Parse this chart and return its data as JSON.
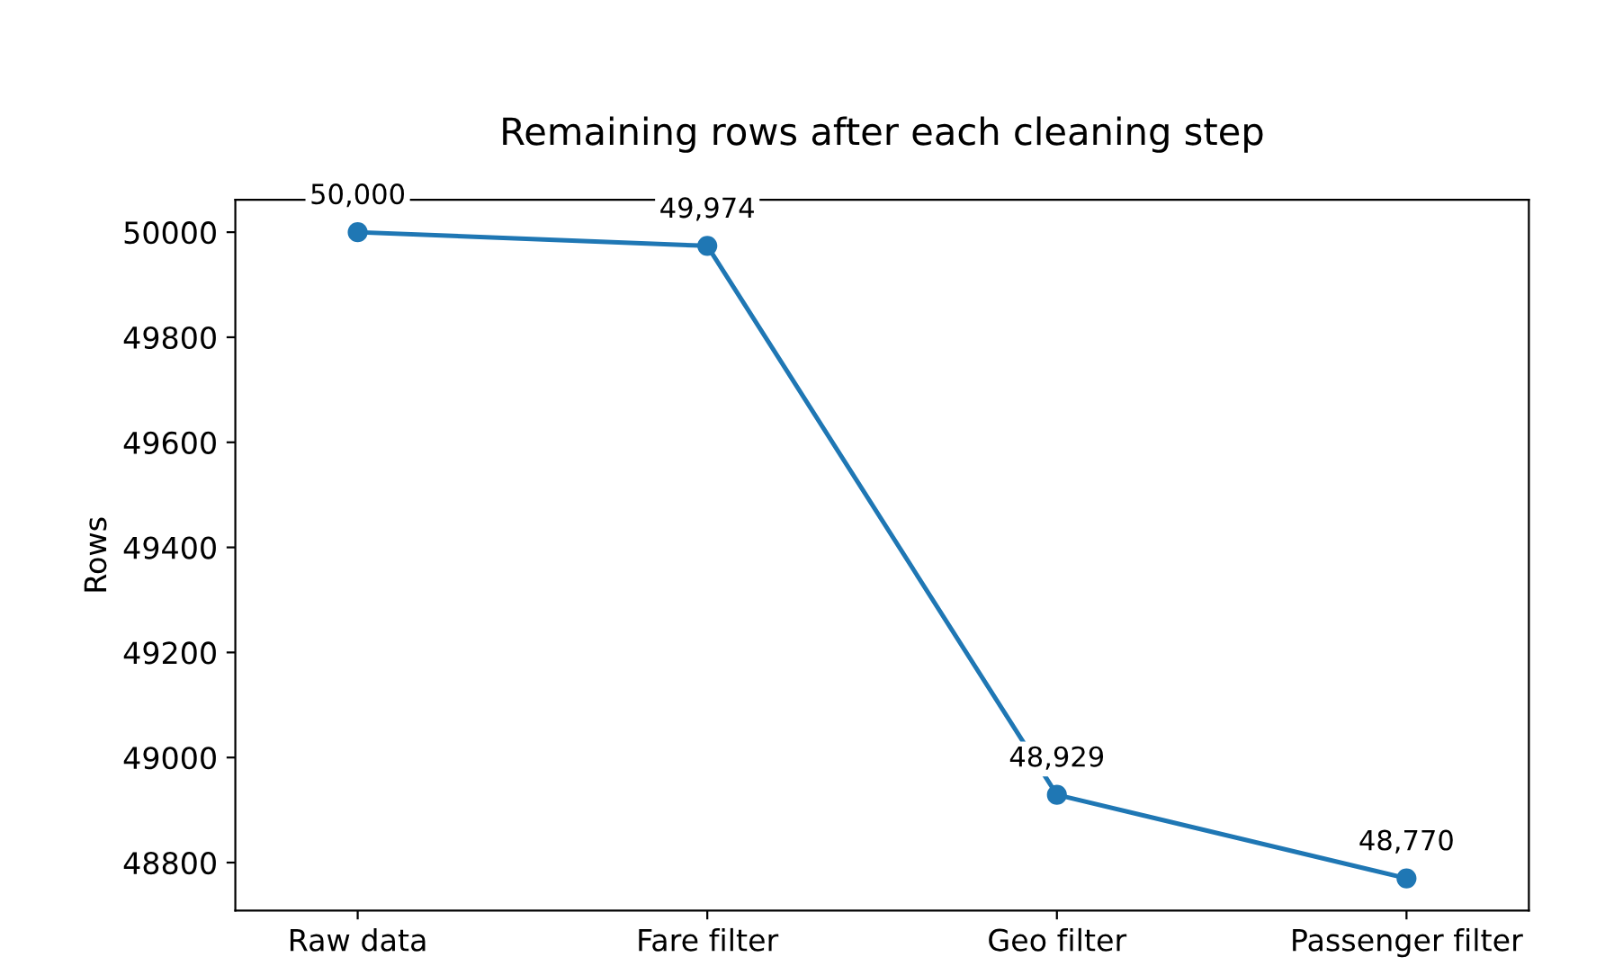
{
  "chart_data": {
    "type": "line",
    "title": "Remaining rows after each cleaning step",
    "ylabel": "Rows",
    "categories": [
      "Raw data",
      "Fare filter",
      "Geo filter",
      "Passenger filter"
    ],
    "values": [
      50000,
      49974,
      48929,
      48770
    ],
    "value_labels": [
      "50,000",
      "49,974",
      "48,929",
      "48,770"
    ],
    "color": "#1f77b4",
    "marker": "circle",
    "line_style": "solid",
    "grid": false,
    "legend": false,
    "ylim": [
      48708.5,
      50061.5
    ],
    "yticks": [
      48800,
      49000,
      49200,
      49400,
      49600,
      49800,
      50000
    ]
  }
}
